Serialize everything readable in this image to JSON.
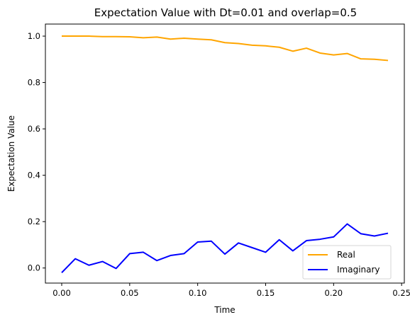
{
  "chart_data": {
    "type": "line",
    "title": "Expectation Value with Dt=0.01 and overlap=0.5",
    "xlabel": "Time",
    "ylabel": "Expectation Value",
    "xlim": [
      -0.012,
      0.252
    ],
    "ylim": [
      -0.065,
      1.052
    ],
    "xticks": [
      0.0,
      0.05,
      0.1,
      0.15,
      0.2,
      0.25
    ],
    "xtick_labels": [
      "0.00",
      "0.05",
      "0.10",
      "0.15",
      "0.20",
      "0.25"
    ],
    "yticks": [
      0.0,
      0.2,
      0.4,
      0.6,
      0.8,
      1.0
    ],
    "ytick_labels": [
      "0.0",
      "0.2",
      "0.4",
      "0.6",
      "0.8",
      "1.0"
    ],
    "grid": false,
    "legend_position": "lower-right",
    "x": [
      0.0,
      0.01,
      0.02,
      0.03,
      0.04,
      0.05,
      0.06,
      0.07,
      0.08,
      0.09,
      0.1,
      0.11,
      0.12,
      0.13,
      0.14,
      0.15,
      0.16,
      0.17,
      0.18,
      0.19,
      0.2,
      0.21,
      0.22,
      0.23,
      0.24
    ],
    "series": [
      {
        "name": "Real",
        "color": "#ffa500",
        "values": [
          1.0,
          1.0,
          1.0,
          0.998,
          0.998,
          0.997,
          0.993,
          0.996,
          0.987,
          0.991,
          0.987,
          0.984,
          0.972,
          0.968,
          0.961,
          0.958,
          0.952,
          0.935,
          0.948,
          0.927,
          0.919,
          0.925,
          0.902,
          0.9,
          0.895
        ]
      },
      {
        "name": "Imaginary",
        "color": "#0000ff",
        "values": [
          -0.02,
          0.04,
          0.012,
          0.028,
          -0.002,
          0.062,
          0.068,
          0.032,
          0.054,
          0.062,
          0.112,
          0.116,
          0.06,
          0.108,
          0.088,
          0.068,
          0.122,
          0.074,
          0.118,
          0.124,
          0.134,
          0.19,
          0.148,
          0.138,
          0.15
        ]
      }
    ]
  }
}
